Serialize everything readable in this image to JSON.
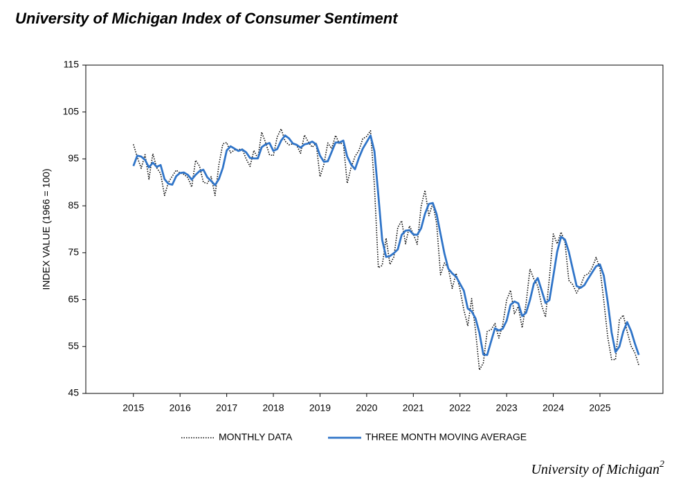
{
  "chart_data": {
    "type": "line",
    "title": "University of Michigan Index of Consumer Sentiment",
    "y_label": "INDEX VALUE (1966 = 100)",
    "source": "University of Michigan",
    "source_superscript": "2",
    "xlim": [
      2013.98,
      2026.35
    ],
    "xticks": [
      2015,
      2016,
      2017,
      2018,
      2019,
      2020,
      2021,
      2022,
      2023,
      2024,
      2025
    ],
    "ylim": [
      45,
      115
    ],
    "yticks": [
      45,
      55,
      65,
      75,
      85,
      95,
      105,
      115
    ],
    "x": [
      2015,
      2015.083,
      2015.167,
      2015.25,
      2015.333,
      2015.417,
      2015.5,
      2015.583,
      2015.667,
      2015.75,
      2015.833,
      2015.917,
      2016,
      2016.083,
      2016.167,
      2016.25,
      2016.333,
      2016.417,
      2016.5,
      2016.583,
      2016.667,
      2016.75,
      2016.833,
      2016.917,
      2017,
      2017.083,
      2017.167,
      2017.25,
      2017.333,
      2017.417,
      2017.5,
      2017.583,
      2017.667,
      2017.75,
      2017.833,
      2017.917,
      2018,
      2018.083,
      2018.167,
      2018.25,
      2018.333,
      2018.417,
      2018.5,
      2018.583,
      2018.667,
      2018.75,
      2018.833,
      2018.917,
      2019,
      2019.083,
      2019.167,
      2019.25,
      2019.333,
      2019.417,
      2019.5,
      2019.583,
      2019.667,
      2019.75,
      2019.833,
      2019.917,
      2020,
      2020.083,
      2020.167,
      2020.25,
      2020.333,
      2020.417,
      2020.5,
      2020.583,
      2020.667,
      2020.75,
      2020.833,
      2020.917,
      2021,
      2021.083,
      2021.167,
      2021.25,
      2021.333,
      2021.417,
      2021.5,
      2021.583,
      2021.667,
      2021.75,
      2021.833,
      2021.917,
      2022,
      2022.083,
      2022.167,
      2022.25,
      2022.333,
      2022.417,
      2022.5,
      2022.583,
      2022.667,
      2022.75,
      2022.833,
      2022.917,
      2023,
      2023.083,
      2023.167,
      2023.25,
      2023.333,
      2023.417,
      2023.5,
      2023.583,
      2023.667,
      2023.75,
      2023.833,
      2023.917,
      2024,
      2024.083,
      2024.167,
      2024.25,
      2024.333,
      2024.417,
      2024.5,
      2024.583,
      2024.667,
      2024.75,
      2024.833,
      2024.917,
      2025,
      2025.083,
      2025.167,
      2025.25,
      2025.333,
      2025.417,
      2025.5,
      2025.583,
      2025.667,
      2025.75,
      2025.833
    ],
    "series": [
      {
        "name": "MONTHLY DATA",
        "color": "#000000",
        "dash": true,
        "values": [
          98.1,
          95.4,
          93.0,
          95.9,
          90.7,
          96.1,
          93.1,
          91.9,
          87.2,
          90.0,
          91.3,
          92.6,
          92.0,
          91.7,
          91.0,
          89.0,
          94.7,
          93.5,
          90.0,
          89.8,
          91.2,
          87.2,
          93.8,
          98.2,
          98.5,
          96.3,
          96.9,
          97.0,
          97.1,
          95.0,
          93.4,
          96.8,
          95.1,
          100.7,
          98.5,
          95.9,
          95.7,
          99.7,
          101.4,
          98.8,
          98.0,
          98.2,
          97.9,
          96.2,
          100.1,
          98.6,
          97.5,
          98.3,
          91.2,
          93.8,
          98.4,
          97.2,
          100.0,
          98.2,
          98.4,
          89.8,
          93.2,
          95.5,
          96.8,
          99.3,
          99.8,
          101.0,
          89.1,
          71.8,
          72.3,
          78.1,
          72.5,
          74.1,
          80.4,
          81.8,
          76.9,
          80.7,
          79.0,
          76.8,
          84.9,
          88.3,
          82.9,
          85.5,
          81.2,
          70.3,
          72.8,
          71.7,
          67.4,
          70.6,
          67.2,
          62.8,
          59.4,
          65.2,
          58.4,
          50.0,
          51.5,
          58.2,
          58.6,
          59.9,
          56.8,
          59.7,
          64.9,
          67.0,
          62.0,
          63.5,
          59.0,
          64.2,
          71.5,
          69.4,
          67.9,
          63.8,
          61.3,
          69.7,
          79.0,
          76.9,
          79.4,
          77.2,
          69.1,
          68.2,
          66.4,
          67.9,
          70.1,
          70.5,
          71.8,
          74.0,
          71.7,
          64.7,
          57.0,
          52.2,
          52.2,
          60.7,
          61.7,
          58.2,
          55.1,
          53.6,
          51.0
        ]
      },
      {
        "name": "THREE MONTH MOVING AVERAGE",
        "color": "#2f74c8",
        "dash": false,
        "values": [
          93.5,
          95.7,
          95.5,
          94.8,
          93.2,
          94.2,
          93.3,
          93.7,
          90.7,
          89.7,
          89.5,
          91.3,
          92.0,
          92.1,
          91.6,
          90.6,
          91.6,
          92.4,
          92.7,
          91.1,
          90.3,
          89.4,
          90.7,
          93.1,
          96.8,
          97.7,
          97.2,
          96.7,
          97.0,
          96.4,
          95.2,
          95.1,
          95.1,
          97.5,
          98.1,
          98.4,
          96.7,
          97.1,
          98.9,
          100.0,
          99.4,
          98.3,
          98.0,
          97.4,
          98.1,
          98.3,
          98.7,
          98.1,
          95.7,
          94.4,
          94.5,
          96.5,
          98.5,
          98.5,
          98.9,
          95.5,
          93.8,
          92.8,
          95.2,
          97.2,
          98.6,
          100.0,
          96.6,
          87.3,
          77.7,
          74.1,
          74.3,
          74.9,
          75.7,
          78.8,
          79.7,
          79.8,
          78.9,
          78.8,
          80.2,
          83.3,
          85.4,
          85.6,
          83.2,
          79.0,
          74.8,
          71.6,
          70.6,
          69.9,
          68.4,
          66.9,
          63.1,
          62.5,
          61.0,
          57.9,
          53.3,
          53.2,
          56.1,
          58.9,
          58.4,
          58.8,
          60.5,
          63.9,
          64.6,
          64.2,
          61.5,
          62.2,
          64.9,
          68.4,
          69.6,
          67.0,
          64.3,
          64.9,
          70.0,
          75.2,
          78.4,
          77.8,
          75.2,
          71.5,
          67.9,
          67.5,
          68.1,
          69.5,
          70.8,
          72.1,
          72.5,
          70.1,
          64.5,
          58.0,
          53.8,
          55.0,
          58.2,
          60.2,
          58.3,
          55.6,
          53.2
        ]
      }
    ]
  }
}
